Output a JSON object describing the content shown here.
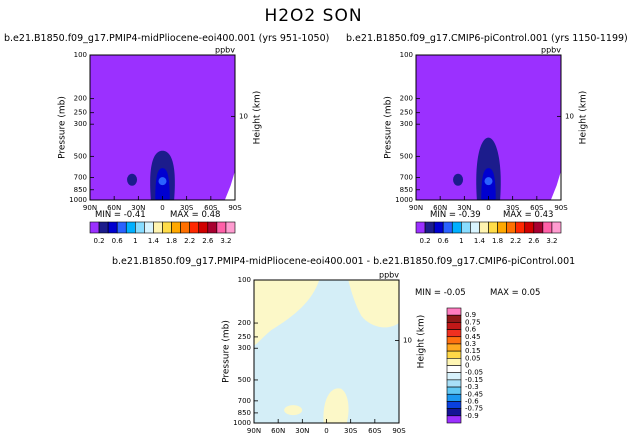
{
  "title": "H2O2 SON",
  "colors": {
    "background_purple": "#9b30ff",
    "plot_border": "#000000",
    "diff_bg_lightblue": "#d4eef7",
    "diff_bg_cream": "#fcf8c8"
  },
  "chart_data": [
    {
      "type": "heatmap",
      "panel": "top-left",
      "title": "b.e21.B1850.f09_g17.PMIP4-midPliocene-eoi400.001 (yrs 951-1050)",
      "unit": "ppbv",
      "ylabel": "Pressure (mb)",
      "ylabel_right": "Height (km)",
      "x_ticks": [
        "90N",
        "60N",
        "30N",
        "0",
        "30S",
        "60S",
        "90S"
      ],
      "y_ticks": [
        "100",
        "200",
        "250",
        "300",
        "500",
        "700",
        "850",
        "1000"
      ],
      "y_ticks_right": [
        "10"
      ],
      "y_scale": "log-pressure",
      "min_label": "MIN = -0.41",
      "max_label": "MAX = 0.48",
      "min": -0.41,
      "max": 0.48,
      "colorbar_labels": [
        "0.2",
        "0.6",
        "1",
        "1.4",
        "1.8",
        "2.2",
        "2.6",
        "3.2"
      ]
    },
    {
      "type": "heatmap",
      "panel": "top-right",
      "title": "b.e21.B1850.f09_g17.CMIP6-piControl.001 (yrs 1150-1199)",
      "unit": "ppbv",
      "ylabel": "Pressure (mb)",
      "ylabel_right": "Height (km)",
      "x_ticks": [
        "90N",
        "60N",
        "30N",
        "0",
        "30S",
        "60S",
        "90S"
      ],
      "y_ticks": [
        "100",
        "200",
        "250",
        "300",
        "500",
        "700",
        "850",
        "1000"
      ],
      "y_ticks_right": [
        "10"
      ],
      "y_scale": "log-pressure",
      "min_label": "MIN = -0.39",
      "max_label": "MAX = 0.43",
      "min": -0.39,
      "max": 0.43,
      "colorbar_labels": [
        "0.2",
        "0.6",
        "1",
        "1.4",
        "1.8",
        "2.2",
        "2.6",
        "3.2"
      ]
    },
    {
      "type": "heatmap",
      "panel": "bottom-difference",
      "title": "b.e21.B1850.f09_g17.PMIP4-midPliocene-eoi400.001 - b.e21.B1850.f09_g17.CMIP6-piControl.001",
      "unit": "ppbv",
      "ylabel": "Pressure (mb)",
      "ylabel_right": "Height (km)",
      "x_ticks": [
        "90N",
        "60N",
        "30N",
        "0",
        "30S",
        "60S",
        "90S"
      ],
      "y_ticks": [
        "100",
        "200",
        "250",
        "300",
        "500",
        "700",
        "850",
        "1000"
      ],
      "y_ticks_right": [
        "10"
      ],
      "y_scale": "log-pressure",
      "min_label": "MIN = -0.05",
      "max_label": "MAX = 0.05",
      "min": -0.05,
      "max": 0.05,
      "colorbar_labels": [
        "0.9",
        "0.75",
        "0.6",
        "0.45",
        "0.3",
        "0.15",
        "0.05",
        "0",
        "-0.05",
        "-0.15",
        "-0.3",
        "-0.45",
        "-0.6",
        "-0.75",
        "-0.9"
      ]
    }
  ],
  "top_colorbar": {
    "colors": [
      "#9b30ff",
      "#1c1c8c",
      "#0000d0",
      "#2a62ff",
      "#00b0ff",
      "#88dcff",
      "#d8f4ff",
      "#fff4b0",
      "#ffdc48",
      "#ffa800",
      "#ff7000",
      "#ff2800",
      "#d00000",
      "#a80030",
      "#ff60a8",
      "#ff9cd0"
    ]
  },
  "diff_colorbar": {
    "colors": [
      "#ff7cc0",
      "#901818",
      "#c01818",
      "#f03020",
      "#ff7010",
      "#ffa820",
      "#ffd848",
      "#fff6b4",
      "#ffffff",
      "#d8f2fc",
      "#a8e0f8",
      "#60c8f4",
      "#1c98f0",
      "#0a40e0",
      "#141496",
      "#9b30ff"
    ]
  }
}
